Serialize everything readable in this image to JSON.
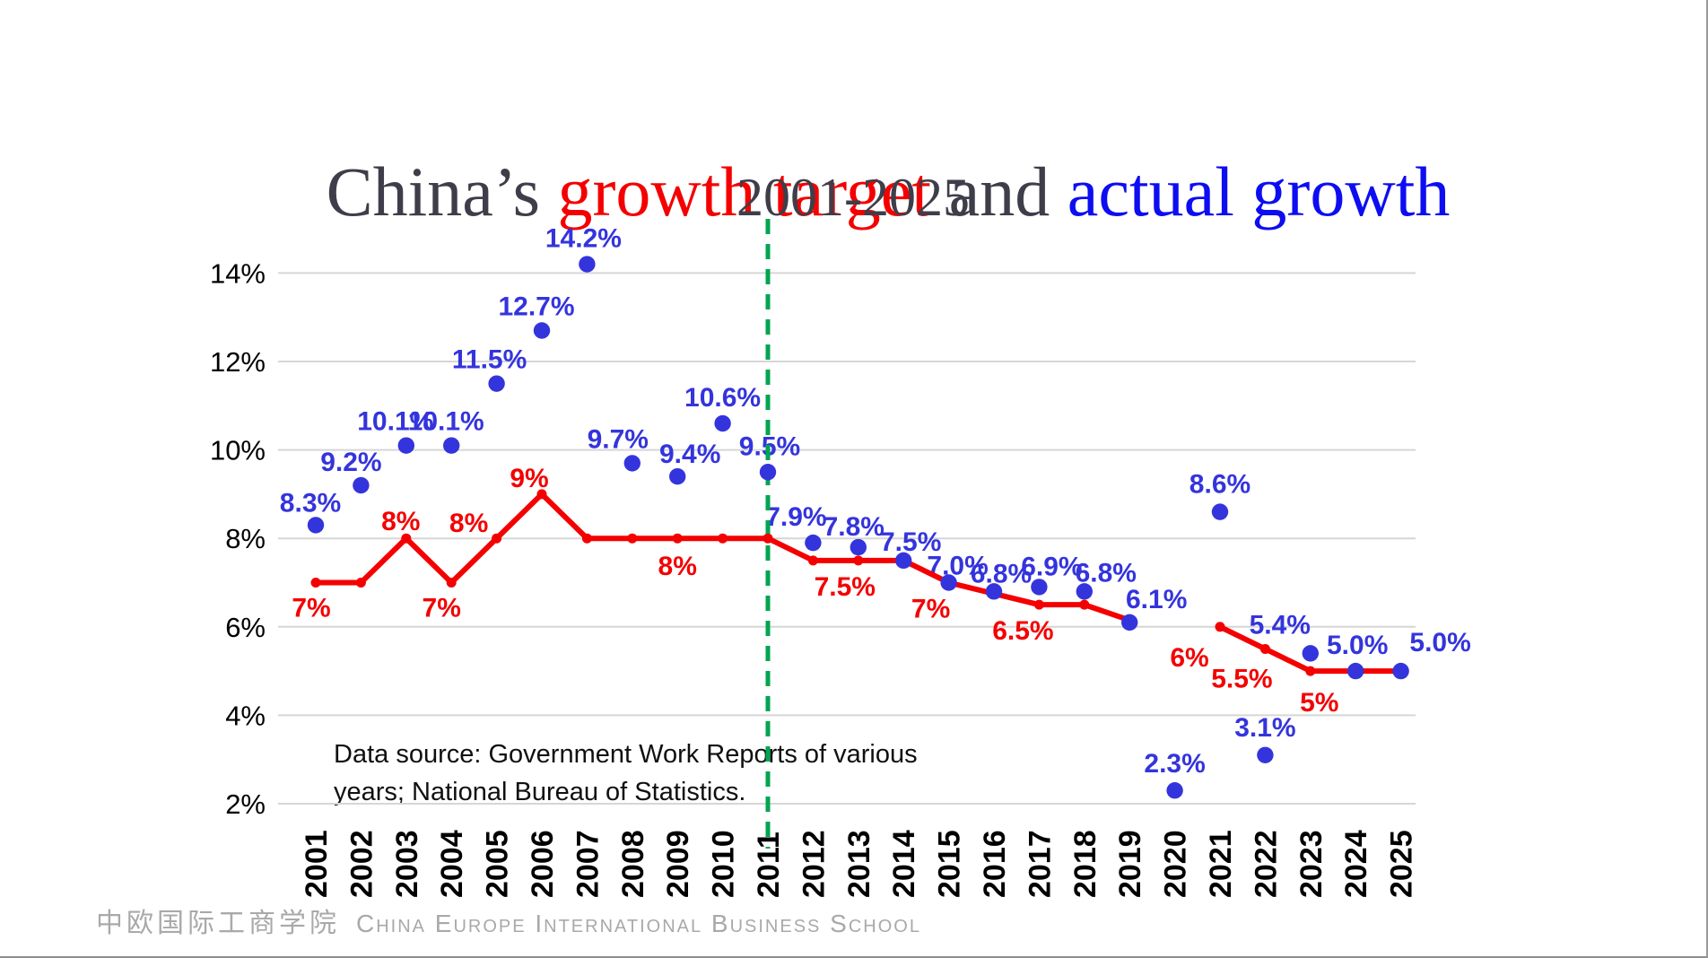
{
  "slide": {
    "title_parts": [
      {
        "text": "China’s ",
        "color": "#3e3e4a"
      },
      {
        "text": "growth target",
        "color": "#f40000"
      },
      {
        "text": " and ",
        "color": "#3e3e4a"
      },
      {
        "text": "actual growth",
        "color": "#0d0df2"
      }
    ],
    "subtitle": "2001-2025",
    "source_note_line1": "Data source: Government Work Reports of various",
    "source_note_line2": "years; National Bureau of Statistics.",
    "footer": {
      "logo_cn": "中欧国际工商学院",
      "logo_en": "China Europe International Business School"
    }
  },
  "chart_data": {
    "type": "line",
    "title": "China’s growth target and actual growth",
    "subtitle": "2001-2025",
    "x": [
      2001,
      2002,
      2003,
      2004,
      2005,
      2006,
      2007,
      2008,
      2009,
      2010,
      2011,
      2012,
      2013,
      2014,
      2015,
      2016,
      2017,
      2018,
      2019,
      2020,
      2021,
      2022,
      2023,
      2024,
      2025
    ],
    "ylim": [
      2,
      15.2
    ],
    "grid": true,
    "legend": "none",
    "yticks": [
      {
        "value": 2,
        "label": "2%"
      },
      {
        "value": 4,
        "label": "4%"
      },
      {
        "value": 6,
        "label": "6%"
      },
      {
        "value": 8,
        "label": "8%"
      },
      {
        "value": 10,
        "label": "10%"
      },
      {
        "value": 12,
        "label": "12%"
      },
      {
        "value": 14,
        "label": "14%"
      }
    ],
    "annotations": {
      "vline": {
        "x": 2011,
        "color": "#00a550",
        "style": "dashed"
      }
    },
    "series": [
      {
        "name": "growth target",
        "type": "line",
        "color": "#f40000",
        "values": [
          7,
          7,
          8,
          7,
          8,
          9,
          8,
          8,
          8,
          8,
          8,
          7.5,
          7.5,
          7.5,
          7,
          6.75,
          6.5,
          6.5,
          6.15,
          null,
          6,
          5.5,
          5,
          5,
          5
        ],
        "point_labels": [
          {
            "x": 2001,
            "text": "7%",
            "dx": -5,
            "dy": 27
          },
          {
            "x": 2003,
            "text": "8%",
            "dx": -6,
            "dy": -20
          },
          {
            "x": 2004,
            "text": "7%",
            "dx": -11,
            "dy": 27
          },
          {
            "x": 2005,
            "text": "8%",
            "dx": -31,
            "dy": -18
          },
          {
            "x": 2006,
            "text": "9%",
            "dx": -14,
            "dy": -19
          },
          {
            "x": 2009,
            "text": "8%",
            "dx": 0,
            "dy": 30
          },
          {
            "x": 2013,
            "text": "7.5%",
            "dx": -15,
            "dy": 28
          },
          {
            "x": 2015,
            "text": "7%",
            "dx": -20,
            "dy": 28
          },
          {
            "x": 2017,
            "text": "6.5%",
            "dx": -18,
            "dy": 28
          },
          {
            "x": 2021,
            "text": "6%",
            "dx": -34,
            "dy": 33
          },
          {
            "x": 2022,
            "text": "5.5%",
            "dx": -26,
            "dy": 32
          },
          {
            "x": 2023,
            "text": "5%",
            "dx": 10,
            "dy": 34
          }
        ]
      },
      {
        "name": "actual growth",
        "type": "scatter",
        "color": "#3434dd",
        "values": [
          8.3,
          9.2,
          10.1,
          10.1,
          11.5,
          12.7,
          14.2,
          9.7,
          9.4,
          10.6,
          9.5,
          7.9,
          7.8,
          7.5,
          7.0,
          6.8,
          6.9,
          6.8,
          6.1,
          2.3,
          8.6,
          3.1,
          5.4,
          5.0,
          5.0
        ],
        "point_labels": [
          {
            "x": 2001,
            "text": "8.3%",
            "dx": -6,
            "dy": -26
          },
          {
            "x": 2002,
            "text": "9.2%",
            "dx": -11,
            "dy": -27
          },
          {
            "x": 2003,
            "text": "10.1%",
            "dx": -12,
            "dy": -28
          },
          {
            "x": 2004,
            "text": "10.1%",
            "dx": -6,
            "dy": -28
          },
          {
            "x": 2005,
            "text": "11.5%",
            "dx": -8,
            "dy": -28
          },
          {
            "x": 2006,
            "text": "12.7%",
            "dx": -6,
            "dy": -28
          },
          {
            "x": 2007,
            "text": "14.2%",
            "dx": -4,
            "dy": -30
          },
          {
            "x": 2008,
            "text": "9.7%",
            "dx": -16,
            "dy": -28
          },
          {
            "x": 2009,
            "text": "9.4%",
            "dx": 14,
            "dy": -26
          },
          {
            "x": 2010,
            "text": "10.6%",
            "dx": 0,
            "dy": -30
          },
          {
            "x": 2011,
            "text": "9.5%",
            "dx": 2,
            "dy": -30
          },
          {
            "x": 2012,
            "text": "7.9%",
            "dx": -19,
            "dy": -30
          },
          {
            "x": 2013,
            "text": "7.8%",
            "dx": -5,
            "dy": -24
          },
          {
            "x": 2014,
            "text": "7.5%",
            "dx": 8,
            "dy": -22
          },
          {
            "x": 2015,
            "text": "7.0%",
            "dx": 10,
            "dy": -20
          },
          {
            "x": 2016,
            "text": "6.8%",
            "dx": 8,
            "dy": -21
          },
          {
            "x": 2017,
            "text": "6.9%",
            "dx": 14,
            "dy": -24
          },
          {
            "x": 2018,
            "text": "6.8%",
            "dx": 24,
            "dy": -22
          },
          {
            "x": 2019,
            "text": "6.1%",
            "dx": 30,
            "dy": -27
          },
          {
            "x": 2020,
            "text": "2.3%",
            "dx": 0,
            "dy": -31
          },
          {
            "x": 2021,
            "text": "8.6%",
            "dx": 0,
            "dy": -32
          },
          {
            "x": 2022,
            "text": "3.1%",
            "dx": 0,
            "dy": -32
          },
          {
            "x": 2023,
            "text": "5.4%",
            "dx": -34,
            "dy": -33
          },
          {
            "x": 2024,
            "text": "5.0%",
            "dx": 2,
            "dy": -30
          },
          {
            "x": 2025,
            "text": "5.0%",
            "dx": 44,
            "dy": -33
          }
        ]
      }
    ]
  }
}
